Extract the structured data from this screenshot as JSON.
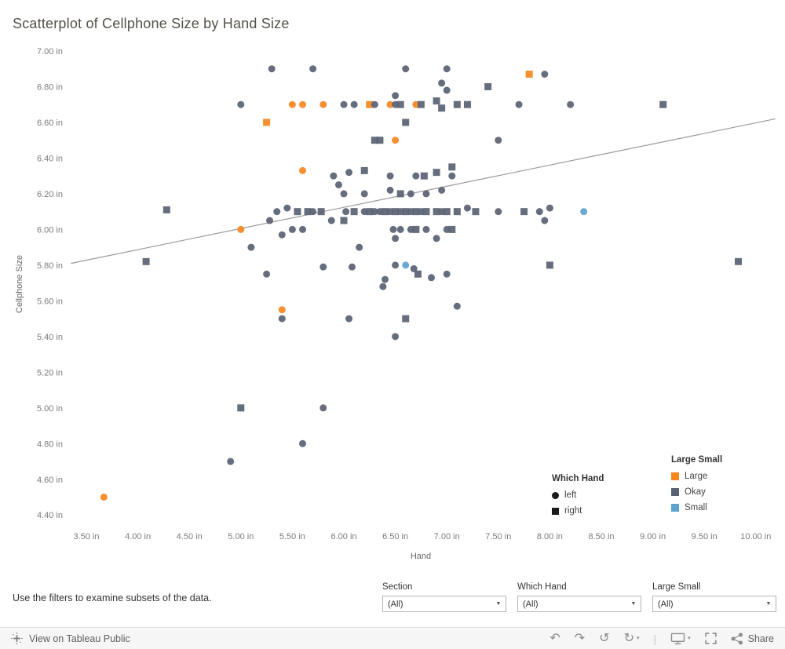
{
  "title": "Scatterplot of Cellphone Size by Hand Size",
  "chart_data": {
    "type": "scatter",
    "title": "Scatterplot of Cellphone Size by Hand Size",
    "xlabel": "Hand",
    "ylabel": "Cellphone Size",
    "xlim": [
      3.35,
      10.19
    ],
    "ylim": [
      4.37,
      7.03
    ],
    "grid": false,
    "x_tick_values": [
      3.5,
      4.0,
      4.5,
      5.0,
      5.5,
      6.0,
      6.5,
      7.0,
      7.5,
      8.0,
      8.5,
      9.0,
      9.5,
      10.0
    ],
    "x_tick_labels": [
      "3.50 in",
      "4.00 in",
      "4.50 in",
      "5.00 in",
      "5.50 in",
      "6.00 in",
      "6.50 in",
      "7.00 in",
      "7.50 in",
      "8.00 in",
      "8.50 in",
      "9.00 in",
      "9.50 in",
      "10.00 in"
    ],
    "y_tick_values": [
      7.0,
      6.8,
      6.6,
      6.4,
      6.2,
      6.0,
      5.8,
      5.6,
      5.4,
      5.2,
      5.0,
      4.8,
      4.6,
      4.4
    ],
    "y_tick_labels": [
      "7.00 in",
      "6.80 in",
      "6.60 in",
      "6.40 in",
      "6.20 in",
      "6.00 in",
      "5.80 in",
      "5.60 in",
      "5.40 in",
      "5.20 in",
      "5.00 in",
      "4.80 in",
      "4.60 in",
      "4.40 in"
    ],
    "trendline": {
      "x1": 3.35,
      "y1": 5.81,
      "x2": 10.19,
      "y2": 6.62
    },
    "trend_color": "#9a9a9a",
    "shape_map": {
      "left": "circle",
      "right": "square"
    },
    "category_colors": {
      "Large": "#f5871f",
      "Okay": "#596273",
      "Small": "#5fa2ce"
    },
    "points_format": [
      "hand_in",
      "cellphone_in",
      "which_hand",
      "large_small"
    ],
    "points": [
      [
        3.67,
        4.5,
        "left",
        "Large"
      ],
      [
        4.08,
        5.82,
        "right",
        "Okay"
      ],
      [
        4.28,
        6.11,
        "right",
        "Okay"
      ],
      [
        4.9,
        4.7,
        "left",
        "Okay"
      ],
      [
        5.0,
        5.0,
        "right",
        "Okay"
      ],
      [
        5.0,
        6.0,
        "left",
        "Large"
      ],
      [
        5.0,
        6.7,
        "left",
        "Okay"
      ],
      [
        5.1,
        5.9,
        "left",
        "Okay"
      ],
      [
        5.25,
        6.6,
        "right",
        "Large"
      ],
      [
        5.25,
        5.75,
        "left",
        "Okay"
      ],
      [
        5.28,
        6.05,
        "left",
        "Okay"
      ],
      [
        5.3,
        6.9,
        "left",
        "Okay"
      ],
      [
        5.35,
        6.1,
        "left",
        "Okay"
      ],
      [
        5.4,
        5.55,
        "left",
        "Large"
      ],
      [
        5.4,
        5.5,
        "left",
        "Okay"
      ],
      [
        5.4,
        5.97,
        "left",
        "Okay"
      ],
      [
        5.45,
        6.12,
        "left",
        "Okay"
      ],
      [
        5.5,
        6.7,
        "left",
        "Large"
      ],
      [
        5.5,
        6.0,
        "left",
        "Okay"
      ],
      [
        5.55,
        6.1,
        "right",
        "Okay"
      ],
      [
        5.6,
        6.7,
        "left",
        "Large"
      ],
      [
        5.6,
        6.33,
        "left",
        "Large"
      ],
      [
        5.6,
        4.8,
        "left",
        "Okay"
      ],
      [
        5.6,
        6.0,
        "left",
        "Okay"
      ],
      [
        5.65,
        6.1,
        "right",
        "Okay"
      ],
      [
        5.7,
        6.9,
        "left",
        "Okay"
      ],
      [
        5.7,
        6.1,
        "left",
        "Okay"
      ],
      [
        5.78,
        6.1,
        "right",
        "Okay"
      ],
      [
        5.8,
        6.7,
        "left",
        "Large"
      ],
      [
        5.8,
        5.0,
        "left",
        "Okay"
      ],
      [
        5.8,
        5.79,
        "left",
        "Okay"
      ],
      [
        5.88,
        6.05,
        "left",
        "Okay"
      ],
      [
        5.9,
        6.3,
        "left",
        "Okay"
      ],
      [
        5.95,
        6.25,
        "left",
        "Okay"
      ],
      [
        6.0,
        6.7,
        "left",
        "Okay"
      ],
      [
        6.0,
        6.2,
        "left",
        "Okay"
      ],
      [
        6.0,
        6.05,
        "right",
        "Okay"
      ],
      [
        6.02,
        6.1,
        "left",
        "Okay"
      ],
      [
        6.05,
        6.32,
        "left",
        "Okay"
      ],
      [
        6.05,
        5.5,
        "left",
        "Okay"
      ],
      [
        6.08,
        5.79,
        "left",
        "Okay"
      ],
      [
        6.1,
        6.7,
        "left",
        "Okay"
      ],
      [
        6.1,
        6.1,
        "right",
        "Okay"
      ],
      [
        6.15,
        5.9,
        "left",
        "Okay"
      ],
      [
        6.2,
        6.33,
        "right",
        "Okay"
      ],
      [
        6.2,
        6.2,
        "left",
        "Okay"
      ],
      [
        6.2,
        6.1,
        "left",
        "Okay"
      ],
      [
        6.25,
        6.7,
        "right",
        "Large"
      ],
      [
        6.25,
        6.1,
        "right",
        "Okay"
      ],
      [
        6.3,
        6.7,
        "left",
        "Okay"
      ],
      [
        6.3,
        6.5,
        "right",
        "Okay"
      ],
      [
        6.3,
        6.1,
        "left",
        "Okay"
      ],
      [
        6.35,
        6.5,
        "right",
        "Okay"
      ],
      [
        6.35,
        6.1,
        "left",
        "Okay"
      ],
      [
        6.38,
        5.68,
        "left",
        "Okay"
      ],
      [
        6.4,
        6.1,
        "right",
        "Okay"
      ],
      [
        6.4,
        5.72,
        "left",
        "Okay"
      ],
      [
        6.45,
        6.7,
        "left",
        "Large"
      ],
      [
        6.45,
        6.3,
        "left",
        "Okay"
      ],
      [
        6.45,
        6.22,
        "left",
        "Okay"
      ],
      [
        6.45,
        6.1,
        "left",
        "Okay"
      ],
      [
        6.48,
        6.0,
        "left",
        "Okay"
      ],
      [
        6.5,
        6.75,
        "left",
        "Okay"
      ],
      [
        6.5,
        6.7,
        "left",
        "Okay"
      ],
      [
        6.5,
        6.5,
        "left",
        "Large"
      ],
      [
        6.5,
        6.1,
        "right",
        "Okay"
      ],
      [
        6.5,
        5.95,
        "left",
        "Okay"
      ],
      [
        6.5,
        5.8,
        "left",
        "Okay"
      ],
      [
        6.5,
        5.4,
        "left",
        "Okay"
      ],
      [
        6.55,
        6.7,
        "right",
        "Okay"
      ],
      [
        6.55,
        6.2,
        "right",
        "Okay"
      ],
      [
        6.55,
        6.1,
        "left",
        "Okay"
      ],
      [
        6.55,
        6.0,
        "left",
        "Okay"
      ],
      [
        6.6,
        6.9,
        "left",
        "Okay"
      ],
      [
        6.6,
        6.6,
        "right",
        "Okay"
      ],
      [
        6.6,
        6.1,
        "right",
        "Okay"
      ],
      [
        6.6,
        5.8,
        "left",
        "Small"
      ],
      [
        6.6,
        5.5,
        "right",
        "Okay"
      ],
      [
        6.65,
        6.2,
        "left",
        "Okay"
      ],
      [
        6.65,
        6.1,
        "left",
        "Okay"
      ],
      [
        6.65,
        6.0,
        "left",
        "Okay"
      ],
      [
        6.68,
        5.78,
        "left",
        "Okay"
      ],
      [
        6.7,
        6.7,
        "left",
        "Large"
      ],
      [
        6.7,
        6.3,
        "left",
        "Okay"
      ],
      [
        6.7,
        6.1,
        "right",
        "Okay"
      ],
      [
        6.7,
        6.0,
        "right",
        "Okay"
      ],
      [
        6.72,
        5.75,
        "right",
        "Okay"
      ],
      [
        6.75,
        6.7,
        "right",
        "Okay"
      ],
      [
        6.75,
        6.1,
        "left",
        "Okay"
      ],
      [
        6.78,
        6.3,
        "right",
        "Okay"
      ],
      [
        6.8,
        6.2,
        "left",
        "Okay"
      ],
      [
        6.8,
        6.1,
        "right",
        "Okay"
      ],
      [
        6.8,
        6.0,
        "left",
        "Okay"
      ],
      [
        6.85,
        5.73,
        "left",
        "Okay"
      ],
      [
        6.9,
        6.72,
        "right",
        "Okay"
      ],
      [
        6.9,
        6.32,
        "right",
        "Okay"
      ],
      [
        6.9,
        6.1,
        "right",
        "Okay"
      ],
      [
        6.9,
        5.95,
        "left",
        "Okay"
      ],
      [
        6.95,
        6.82,
        "left",
        "Okay"
      ],
      [
        6.95,
        6.68,
        "right",
        "Okay"
      ],
      [
        6.95,
        6.22,
        "left",
        "Okay"
      ],
      [
        6.95,
        6.1,
        "left",
        "Okay"
      ],
      [
        7.0,
        6.9,
        "left",
        "Okay"
      ],
      [
        7.0,
        6.78,
        "left",
        "Okay"
      ],
      [
        7.0,
        6.1,
        "right",
        "Okay"
      ],
      [
        7.0,
        6.0,
        "left",
        "Okay"
      ],
      [
        7.0,
        5.75,
        "left",
        "Okay"
      ],
      [
        7.05,
        6.35,
        "right",
        "Okay"
      ],
      [
        7.05,
        6.3,
        "left",
        "Okay"
      ],
      [
        7.05,
        6.0,
        "right",
        "Okay"
      ],
      [
        7.1,
        6.7,
        "right",
        "Okay"
      ],
      [
        7.1,
        6.1,
        "right",
        "Okay"
      ],
      [
        7.1,
        5.57,
        "left",
        "Okay"
      ],
      [
        7.2,
        6.7,
        "right",
        "Okay"
      ],
      [
        7.2,
        6.12,
        "left",
        "Okay"
      ],
      [
        7.28,
        6.1,
        "right",
        "Okay"
      ],
      [
        7.4,
        6.8,
        "right",
        "Okay"
      ],
      [
        7.5,
        6.5,
        "left",
        "Okay"
      ],
      [
        7.5,
        6.1,
        "left",
        "Okay"
      ],
      [
        7.7,
        6.7,
        "left",
        "Okay"
      ],
      [
        7.75,
        6.1,
        "right",
        "Okay"
      ],
      [
        7.8,
        6.87,
        "right",
        "Large"
      ],
      [
        7.9,
        6.1,
        "left",
        "Okay"
      ],
      [
        7.95,
        6.87,
        "left",
        "Okay"
      ],
      [
        7.95,
        6.05,
        "left",
        "Okay"
      ],
      [
        8.0,
        6.12,
        "left",
        "Okay"
      ],
      [
        8.0,
        5.8,
        "right",
        "Okay"
      ],
      [
        8.2,
        6.7,
        "left",
        "Okay"
      ],
      [
        8.33,
        6.1,
        "left",
        "Small"
      ],
      [
        9.1,
        6.7,
        "right",
        "Okay"
      ],
      [
        9.83,
        5.82,
        "right",
        "Okay"
      ]
    ]
  },
  "legends": {
    "shape": {
      "title": "Which Hand",
      "items": [
        {
          "label": "left",
          "shape": "circle"
        },
        {
          "label": "right",
          "shape": "square"
        }
      ]
    },
    "color": {
      "title": "Large Small",
      "items": [
        {
          "label": "Large",
          "color": "#f5871f"
        },
        {
          "label": "Okay",
          "color": "#596273"
        },
        {
          "label": "Small",
          "color": "#5fa2ce"
        }
      ]
    }
  },
  "footer": {
    "instruction": "Use the filters to examine subsets of the data.",
    "filters": [
      {
        "label": "Section",
        "value": "(All)"
      },
      {
        "label": "Which Hand",
        "value": "(All)"
      },
      {
        "label": "Large Small",
        "value": "(All)"
      }
    ]
  },
  "toolbar": {
    "view_label": "View on Tableau Public",
    "share_label": "Share"
  }
}
